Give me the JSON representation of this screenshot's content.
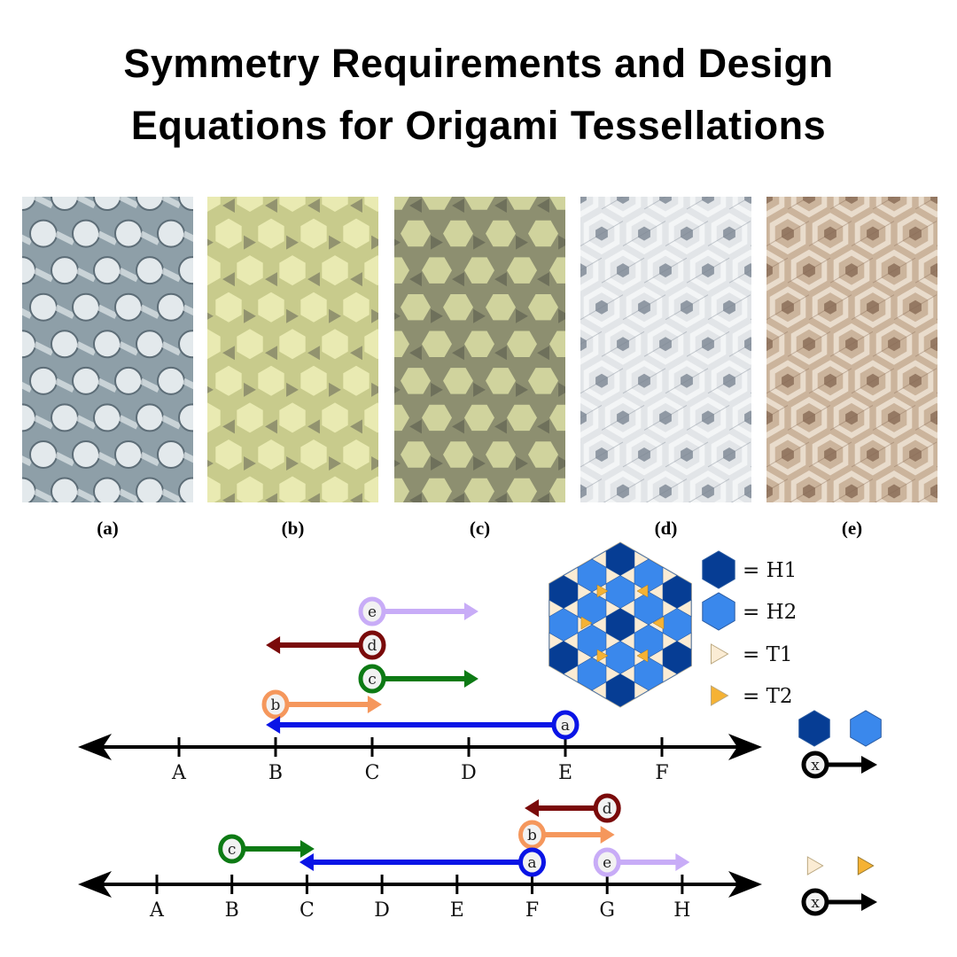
{
  "title": {
    "line1": "Symmetry Requirements and Design",
    "line2": "Equations for Origami Tessellations"
  },
  "panels": [
    {
      "label": "(a)",
      "colors": {
        "base": "#8e9fa8",
        "light": "#e3e9ec",
        "dark": "#5d6d77"
      }
    },
    {
      "label": "(b)",
      "colors": {
        "base": "#c8cb8c",
        "light": "#eef0b8",
        "dark": "#666658"
      }
    },
    {
      "label": "(c)",
      "colors": {
        "base": "#8d8f70",
        "light": "#dcdfa4",
        "dark": "#55574a"
      }
    },
    {
      "label": "(d)",
      "colors": {
        "base": "#e2e5e8",
        "light": "#f5f6f7",
        "dark": "#7c8692"
      }
    },
    {
      "label": "(e)",
      "colors": {
        "base": "#cbb49c",
        "light": "#ece0d2",
        "dark": "#876a55"
      }
    }
  ],
  "legend": {
    "items": [
      {
        "shape": "hexagon",
        "color": "#063d94",
        "label": "= H1"
      },
      {
        "shape": "hexagon",
        "color": "#3a88ec",
        "label": "= H2"
      },
      {
        "shape": "triangle",
        "color": "#fbecd4",
        "label": "= T1"
      },
      {
        "shape": "triangle",
        "color": "#f5b234",
        "label": "= T2"
      }
    ],
    "background": "#fbecd4"
  },
  "number_lines": [
    {
      "ticks": [
        "A",
        "B",
        "C",
        "D",
        "E",
        "F"
      ],
      "arrows": [
        {
          "label": "e",
          "start": 2,
          "end": 3.1,
          "color": "#c8acf7"
        },
        {
          "label": "d",
          "start": 2,
          "end": 0.9,
          "color": "#7a0a0a"
        },
        {
          "label": "c",
          "start": 2,
          "end": 3.1,
          "color": "#0d7a14"
        },
        {
          "label": "b",
          "start": 1,
          "end": 2.1,
          "color": "#f5975c"
        },
        {
          "label": "a",
          "start": 4,
          "end": 0.9,
          "color": "#0a14e6"
        }
      ],
      "key_label": "x",
      "key_shapes": [
        "hexagon-H1",
        "hexagon-H2"
      ]
    },
    {
      "ticks": [
        "A",
        "B",
        "C",
        "D",
        "E",
        "F",
        "G",
        "H"
      ],
      "arrows": [
        {
          "label": "d",
          "start": 6,
          "end": 4.9,
          "color": "#7a0a0a"
        },
        {
          "label": "b",
          "start": 5,
          "end": 6.1,
          "color": "#f5975c"
        },
        {
          "label": "c",
          "start": 1,
          "end": 2.1,
          "color": "#0d7a14"
        },
        {
          "label": "a",
          "start": 5,
          "end": 1.9,
          "color": "#0a14e6"
        },
        {
          "label": "e",
          "start": 6,
          "end": 7.1,
          "color": "#c8acf7"
        }
      ],
      "key_label": "x",
      "key_shapes": [
        "triangle-T1",
        "triangle-T2"
      ]
    }
  ]
}
